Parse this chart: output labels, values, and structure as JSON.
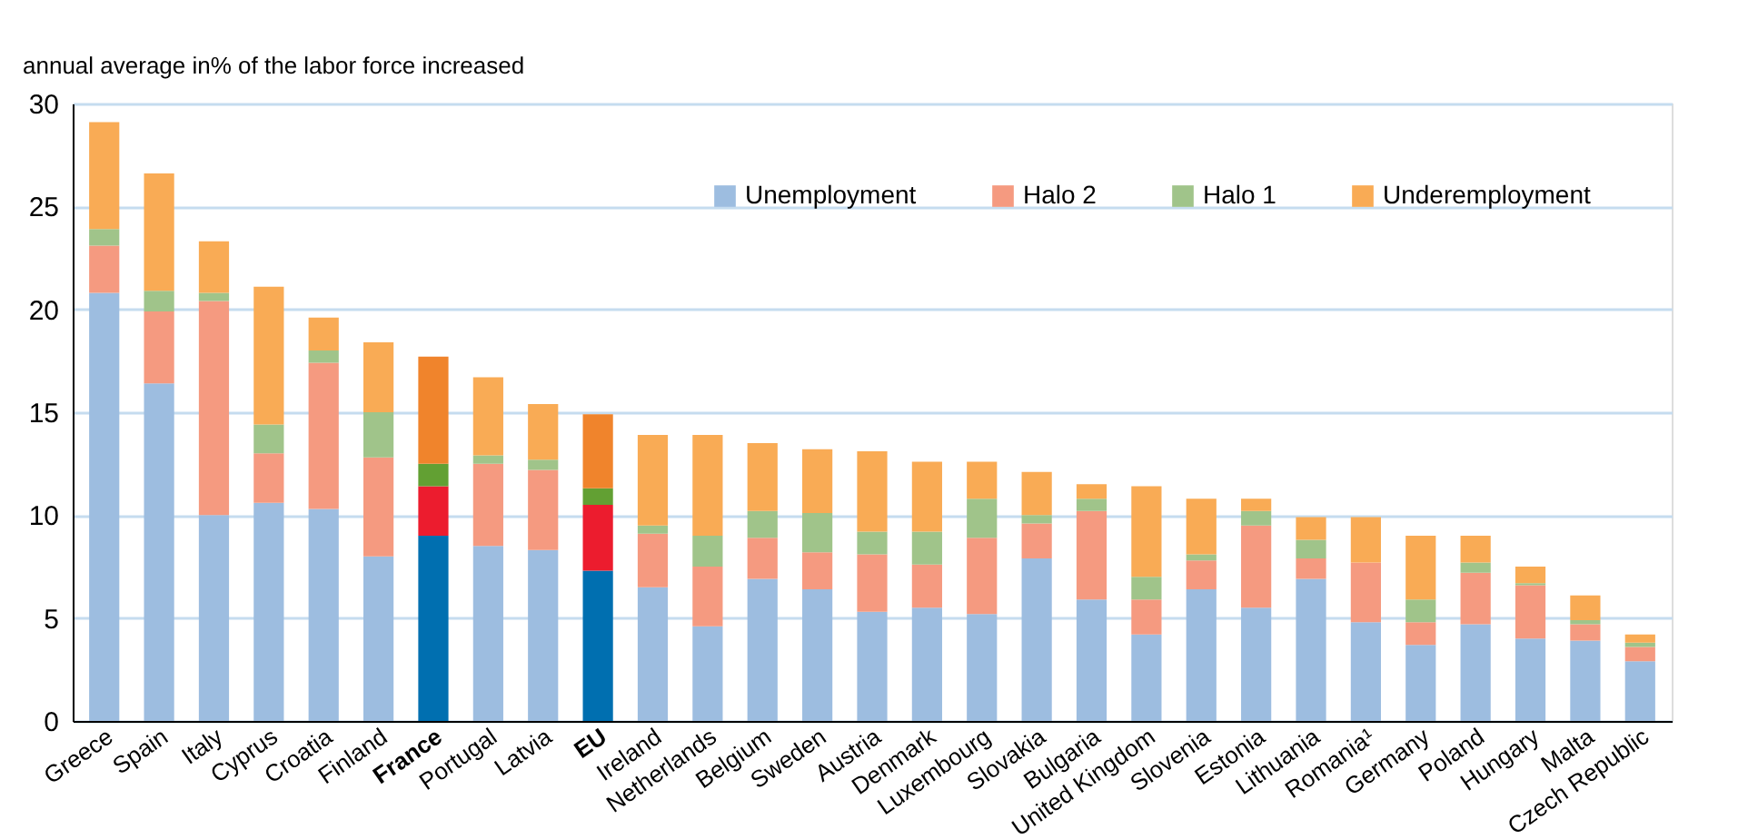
{
  "chart_data": {
    "type": "bar",
    "stacked": true,
    "ylabel": "annual average in% of the labor force increased",
    "categories": [
      "Greece",
      "Spain",
      "Italy",
      "Cyprus",
      "Croatia",
      "Finland",
      "France",
      "Portugal",
      "Latvia",
      "EU",
      "Ireland",
      "Netherlands",
      "Belgium",
      "Sweden",
      "Austria",
      "Denmark",
      "Luxembourg",
      "Slovakia",
      "Bulgaria",
      "United Kingdom",
      "Slovenia",
      "Estonia",
      "Lithuania",
      "Romania¹",
      "Germany",
      "Poland",
      "Hungary",
      "Malta",
      "Czech Republic"
    ],
    "series": [
      {
        "name": "Unemployment",
        "color": "#9dbde0",
        "colors": [
          "#9dbde0",
          "#9dbde0",
          "#9dbde0",
          "#9dbde0",
          "#9dbde0",
          "#9dbde0",
          "#006fb0",
          "#9dbde0",
          "#9dbde0",
          "#006fb0",
          "#9dbde0",
          "#9dbde0",
          "#9dbde0",
          "#9dbde0",
          "#9dbde0",
          "#9dbde0",
          "#9dbde0",
          "#9dbde0",
          "#9dbde0",
          "#9dbde0",
          "#9dbde0",
          "#9dbde0",
          "#9dbde0",
          "#9dbde0",
          "#9dbde0",
          "#9dbde0",
          "#9dbde0",
          "#9dbde0",
          "#9dbde0"
        ],
        "values": [
          20.8,
          16.4,
          10.0,
          10.6,
          10.3,
          8.0,
          9.0,
          8.5,
          8.3,
          7.3,
          6.5,
          4.6,
          6.9,
          6.4,
          5.3,
          5.5,
          5.2,
          7.9,
          5.9,
          4.2,
          6.4,
          5.5,
          6.9,
          4.8,
          3.7,
          4.7,
          4.0,
          3.9,
          2.9
        ]
      },
      {
        "name": "Halo 2",
        "color": "#f59a80",
        "colors": [
          "#f59a80",
          "#f59a80",
          "#f59a80",
          "#f59a80",
          "#f59a80",
          "#f59a80",
          "#ec1c2e",
          "#f59a80",
          "#f59a80",
          "#ec1c2e",
          "#f59a80",
          "#f59a80",
          "#f59a80",
          "#f59a80",
          "#f59a80",
          "#f59a80",
          "#f59a80",
          "#f59a80",
          "#f59a80",
          "#f59a80",
          "#f59a80",
          "#f59a80",
          "#f59a80",
          "#f59a80",
          "#f59a80",
          "#f59a80",
          "#f59a80",
          "#f59a80",
          "#f59a80"
        ],
        "values": [
          2.3,
          3.5,
          10.4,
          2.4,
          7.1,
          4.8,
          2.4,
          4.0,
          3.9,
          3.2,
          2.6,
          2.9,
          2.0,
          1.8,
          2.8,
          2.1,
          3.7,
          1.7,
          4.3,
          1.7,
          1.4,
          4.0,
          1.0,
          2.9,
          1.1,
          2.5,
          2.6,
          0.8,
          0.7
        ]
      },
      {
        "name": "Halo 1",
        "color": "#a0c48a",
        "colors": [
          "#a0c48a",
          "#a0c48a",
          "#a0c48a",
          "#a0c48a",
          "#a0c48a",
          "#a0c48a",
          "#62a033",
          "#a0c48a",
          "#a0c48a",
          "#62a033",
          "#a0c48a",
          "#a0c48a",
          "#a0c48a",
          "#a0c48a",
          "#a0c48a",
          "#a0c48a",
          "#a0c48a",
          "#a0c48a",
          "#a0c48a",
          "#a0c48a",
          "#a0c48a",
          "#a0c48a",
          "#a0c48a",
          "#a0c48a",
          "#a0c48a",
          "#a0c48a",
          "#a0c48a",
          "#a0c48a",
          "#a0c48a"
        ],
        "values": [
          0.8,
          1.0,
          0.4,
          1.4,
          0.6,
          2.2,
          1.1,
          0.4,
          0.5,
          0.8,
          0.4,
          1.5,
          1.3,
          1.9,
          1.1,
          1.6,
          1.9,
          0.4,
          0.6,
          1.1,
          0.3,
          0.7,
          0.9,
          0.0,
          1.1,
          0.5,
          0.1,
          0.2,
          0.2
        ]
      },
      {
        "name": "Underemployment",
        "color": "#f9ab55",
        "colors": [
          "#f9ab55",
          "#f9ab55",
          "#f9ab55",
          "#f9ab55",
          "#f9ab55",
          "#f9ab55",
          "#f0842c",
          "#f9ab55",
          "#f9ab55",
          "#f0842c",
          "#f9ab55",
          "#f9ab55",
          "#f9ab55",
          "#f9ab55",
          "#f9ab55",
          "#f9ab55",
          "#f9ab55",
          "#f9ab55",
          "#f9ab55",
          "#f9ab55",
          "#f9ab55",
          "#f9ab55",
          "#f9ab55",
          "#f9ab55",
          "#f9ab55",
          "#f9ab55",
          "#f9ab55",
          "#f9ab55",
          "#f9ab55"
        ],
        "values": [
          5.2,
          5.7,
          2.5,
          6.7,
          1.6,
          3.4,
          5.2,
          3.8,
          2.7,
          3.6,
          4.4,
          4.9,
          3.3,
          3.1,
          3.9,
          3.4,
          1.8,
          2.1,
          0.7,
          4.4,
          2.7,
          0.6,
          1.1,
          2.2,
          3.1,
          1.3,
          0.8,
          1.2,
          0.4
        ]
      }
    ],
    "ylim": [
      0,
      30
    ],
    "yticks": [
      0,
      5,
      10,
      15,
      20,
      25,
      30
    ],
    "grid": "y",
    "legend": "top right"
  }
}
